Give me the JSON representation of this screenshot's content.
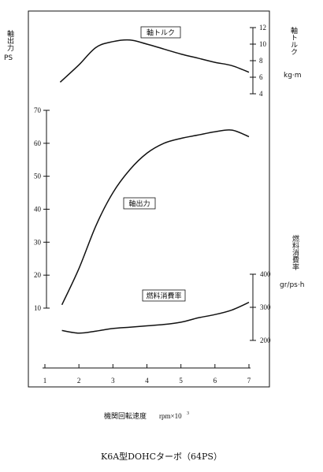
{
  "chart_data": {
    "type": "line",
    "x_label": "機関回転速度",
    "x_unit": "rpm×10",
    "x_unit_sup": "3",
    "x_ticks": [
      "1",
      "2",
      "3",
      "4",
      "5",
      "6",
      "7"
    ],
    "x_range": [
      1,
      7
    ],
    "left_axis": {
      "label_top": "軸出力",
      "label_unit": "PS",
      "ticks": [
        "10",
        "20",
        "30",
        "40",
        "50",
        "60",
        "70"
      ],
      "range": [
        10,
        70
      ]
    },
    "torque_axis": {
      "label_top": "軸トルク",
      "label_unit": "kg·m",
      "ticks": [
        "4",
        "6",
        "8",
        "10",
        "12"
      ],
      "range": [
        4,
        12
      ]
    },
    "fuel_axis": {
      "label_top": "燃料消費率",
      "label_unit": "gr/ps·h",
      "ticks": [
        "200",
        "300",
        "400"
      ],
      "range": [
        200,
        400
      ]
    },
    "series": [
      {
        "name": "軸トルク",
        "axis": "torque",
        "x": [
          1.45,
          2.0,
          2.5,
          3.0,
          3.5,
          4.0,
          4.5,
          5.0,
          5.5,
          6.0,
          6.5,
          7.0
        ],
        "y": [
          5.4,
          7.5,
          9.6,
          10.3,
          10.5,
          10.0,
          9.4,
          8.8,
          8.3,
          7.8,
          7.4,
          6.6
        ]
      },
      {
        "name": "軸出力",
        "axis": "power",
        "x": [
          1.5,
          2.0,
          2.5,
          3.0,
          3.5,
          4.0,
          4.5,
          5.0,
          5.5,
          6.0,
          6.5,
          7.0
        ],
        "y": [
          11,
          22,
          35,
          45,
          52,
          57,
          60,
          61.5,
          62.5,
          63.5,
          64,
          62
        ]
      },
      {
        "name": "燃料消費率",
        "axis": "fuel",
        "x": [
          1.5,
          2.0,
          2.5,
          3.0,
          3.5,
          4.0,
          4.5,
          5.0,
          5.5,
          6.0,
          6.5,
          7.0
        ],
        "y": [
          230,
          222,
          228,
          236,
          240,
          244,
          248,
          255,
          268,
          278,
          292,
          315
        ]
      }
    ]
  },
  "caption": "K6A型DOHCターボ（64PS）",
  "colors": {
    "ink": "#111111",
    "background": "#ffffff"
  }
}
